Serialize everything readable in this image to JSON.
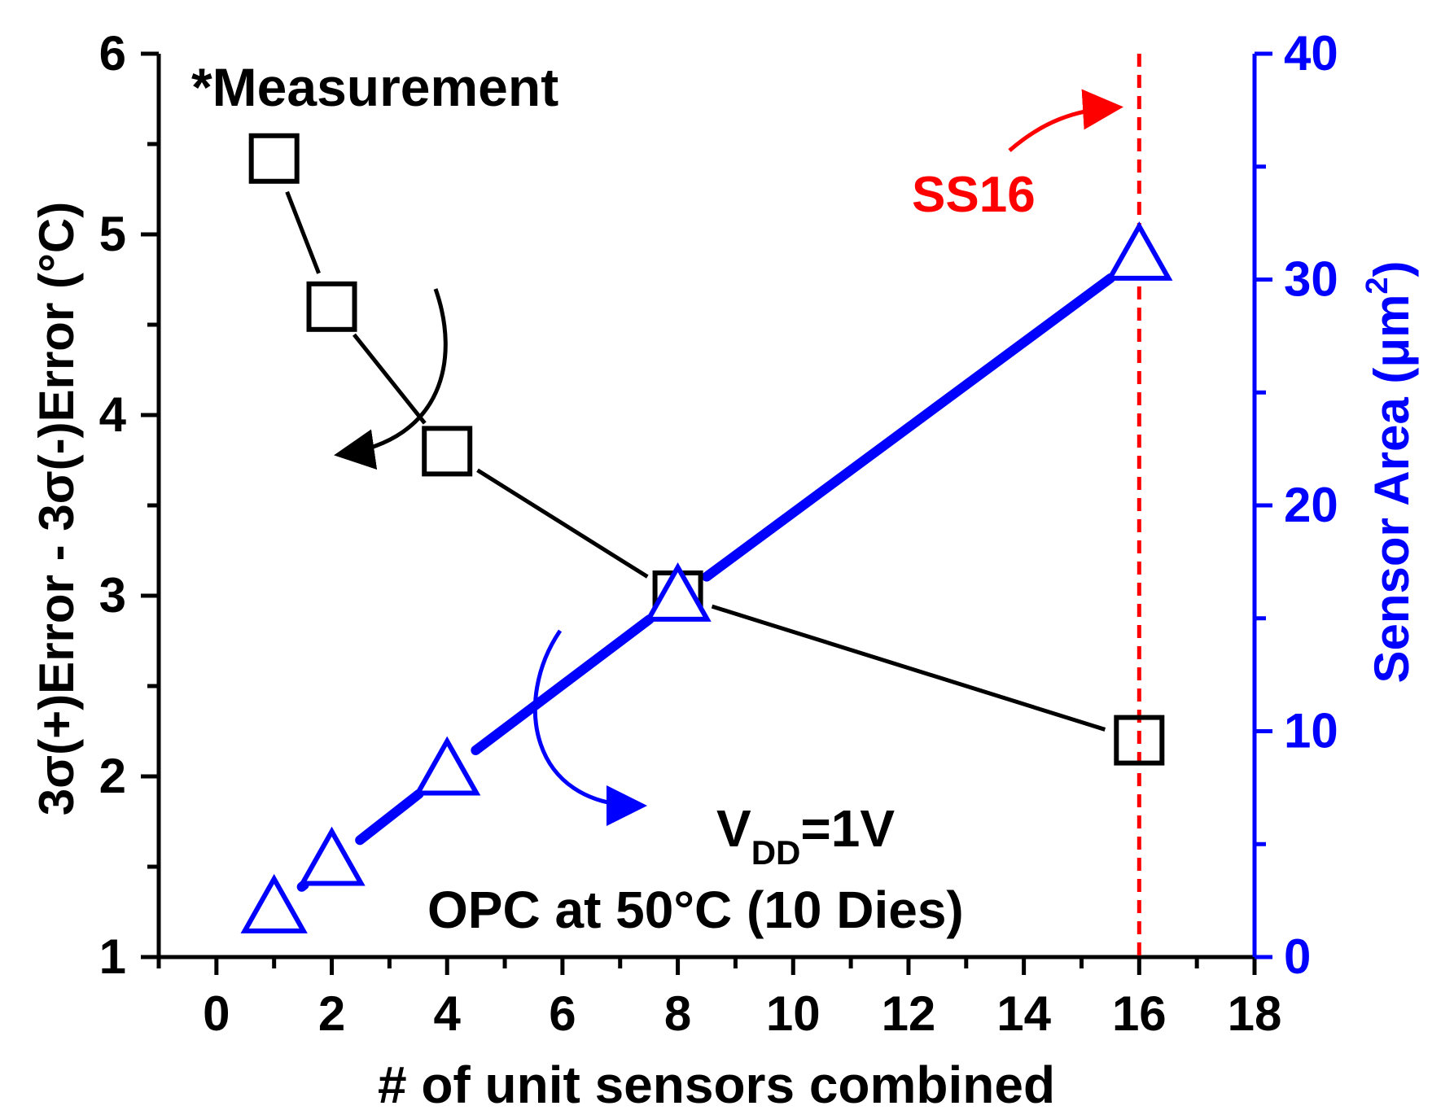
{
  "chart_data": {
    "type": "scatter",
    "x": [
      1,
      2,
      4,
      8,
      16
    ],
    "xlabel": "# of unit sensors combined",
    "xlim": [
      -1,
      18
    ],
    "xticks": [
      0,
      2,
      4,
      6,
      8,
      10,
      12,
      14,
      16,
      18
    ],
    "ylabel_left": "3σ(+)Error - 3σ(-)Error (°C)",
    "ylim_left": [
      1,
      6
    ],
    "yticks_left": [
      1,
      2,
      3,
      4,
      5,
      6
    ],
    "ylabel_right_main": "Sensor Area (μm",
    "ylabel_right_sup": "2",
    "ylabel_right_close": ")",
    "ylim_right": [
      0,
      40
    ],
    "yticks_right": [
      0,
      10,
      20,
      30,
      40
    ],
    "series": [
      {
        "axis": "left",
        "marker": "square",
        "color": "#000000",
        "values": [
          5.42,
          4.6,
          3.8,
          3.0,
          2.2
        ]
      },
      {
        "axis": "right",
        "marker": "triangle",
        "color": "#0000ff",
        "values": [
          2.1,
          4.2,
          8.2,
          15.9,
          31.0
        ]
      }
    ],
    "vline": {
      "x": 16,
      "color": "#ff0000",
      "label": "SS16"
    },
    "annotations": {
      "measurement": "*Measurement",
      "vdd_main": "V",
      "vdd_sub": "DD",
      "vdd_value": "=1V",
      "opc": "OPC at 50°C (10 Dies)"
    },
    "grid": false
  }
}
